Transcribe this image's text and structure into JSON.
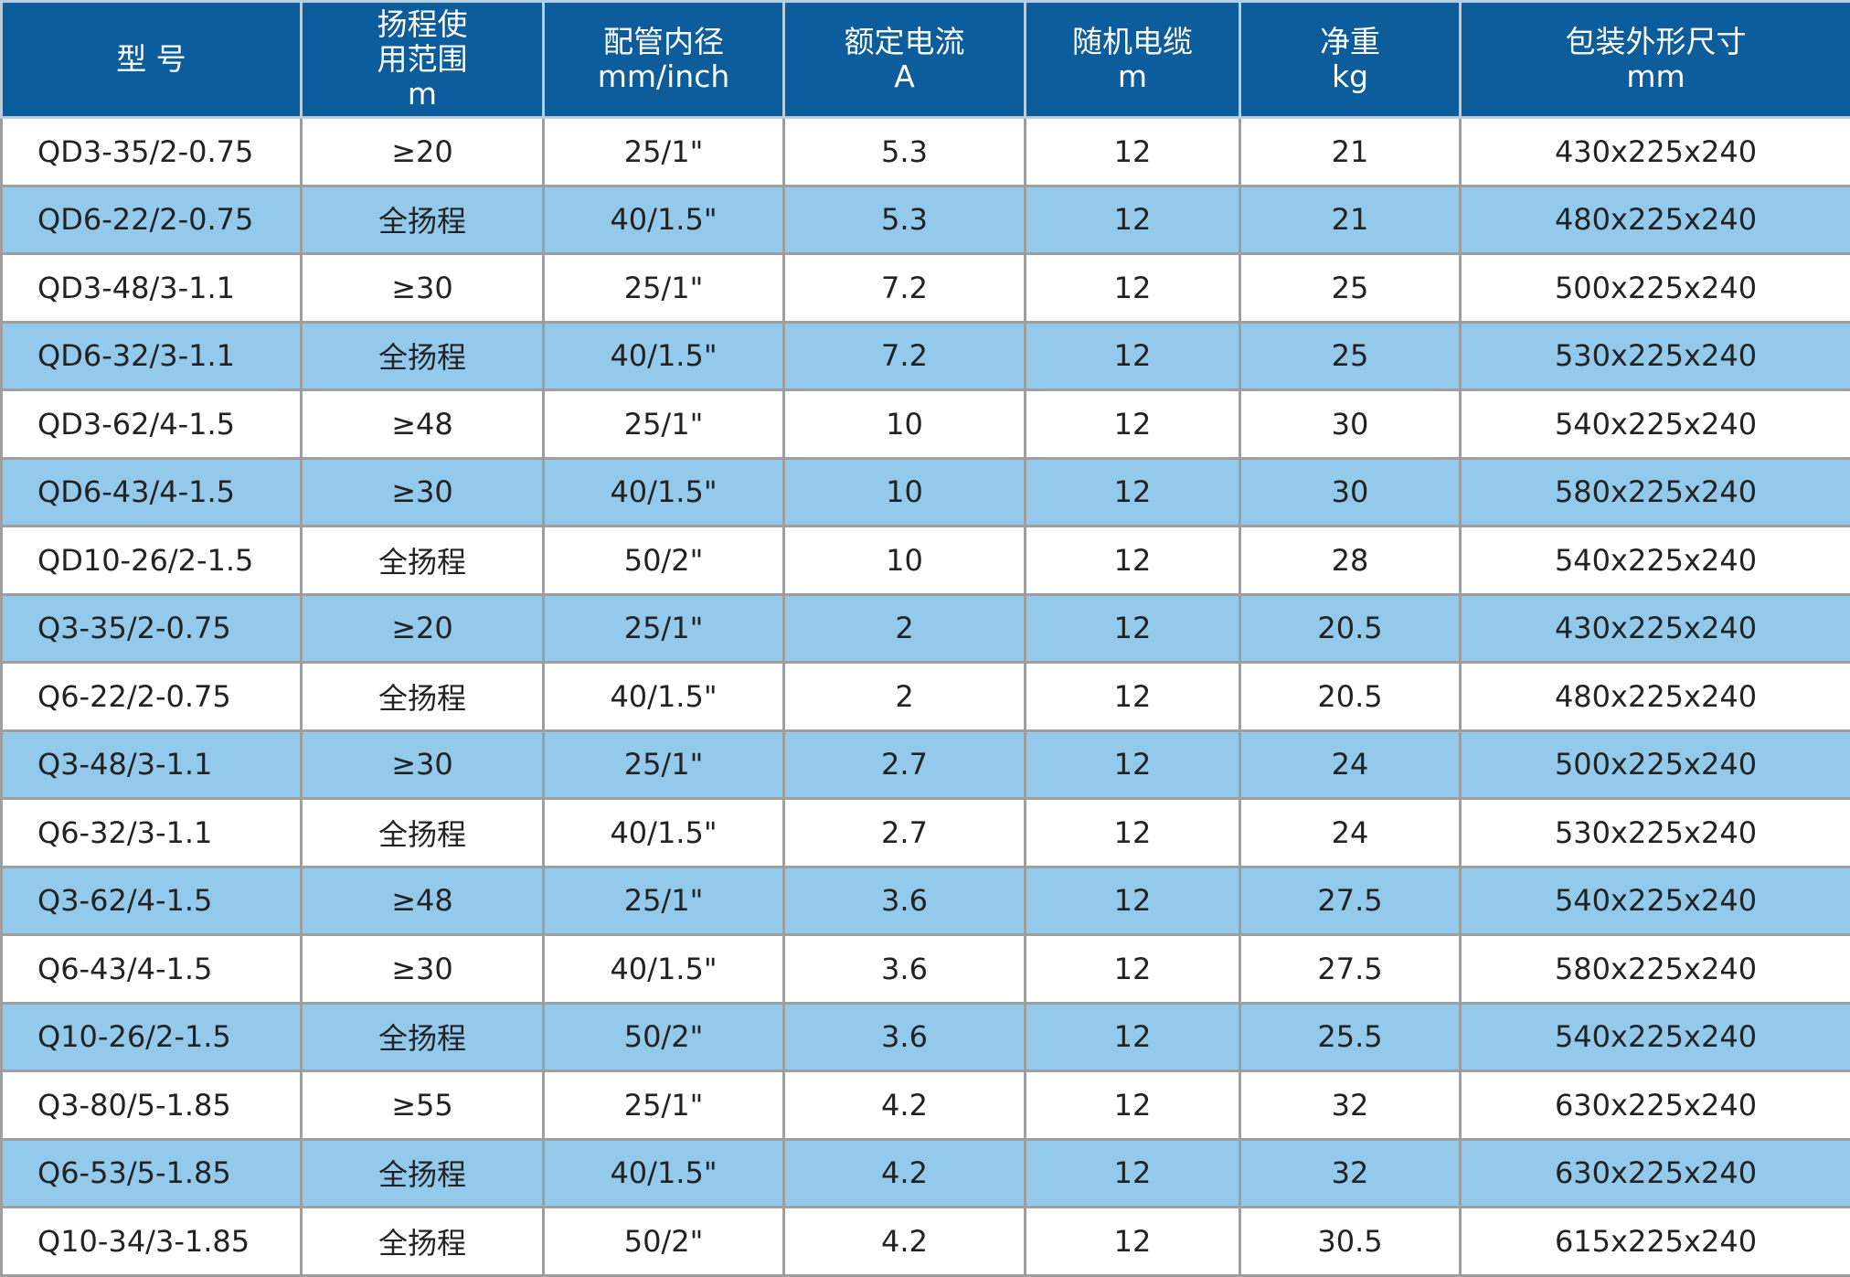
{
  "table": {
    "headers": [
      [
        "型 号"
      ],
      [
        "扬程使",
        "用范围",
        "m"
      ],
      [
        "配管内径",
        "mm/inch"
      ],
      [
        "额定电流",
        "A"
      ],
      [
        "随机电缆",
        "m"
      ],
      [
        "净重",
        "kg"
      ],
      [
        "包装外形尺寸",
        "mm"
      ]
    ],
    "rows": [
      [
        "QD3-35/2-0.75",
        "≥20",
        "25/1\"",
        "5.3",
        "12",
        "21",
        "430x225x240"
      ],
      [
        "QD6-22/2-0.75",
        "全扬程",
        "40/1.5\"",
        "5.3",
        "12",
        "21",
        "480x225x240"
      ],
      [
        "QD3-48/3-1.1",
        "≥30",
        "25/1\"",
        "7.2",
        "12",
        "25",
        "500x225x240"
      ],
      [
        "QD6-32/3-1.1",
        "全扬程",
        "40/1.5\"",
        "7.2",
        "12",
        "25",
        "530x225x240"
      ],
      [
        "QD3-62/4-1.5",
        "≥48",
        "25/1\"",
        "10",
        "12",
        "30",
        "540x225x240"
      ],
      [
        "QD6-43/4-1.5",
        "≥30",
        "40/1.5\"",
        "10",
        "12",
        "30",
        "580x225x240"
      ],
      [
        "QD10-26/2-1.5",
        "全扬程",
        "50/2\"",
        "10",
        "12",
        "28",
        "540x225x240"
      ],
      [
        "Q3-35/2-0.75",
        "≥20",
        "25/1\"",
        "2",
        "12",
        "20.5",
        "430x225x240"
      ],
      [
        "Q6-22/2-0.75",
        "全扬程",
        "40/1.5\"",
        "2",
        "12",
        "20.5",
        "480x225x240"
      ],
      [
        "Q3-48/3-1.1",
        "≥30",
        "25/1\"",
        "2.7",
        "12",
        "24",
        "500x225x240"
      ],
      [
        "Q6-32/3-1.1",
        "全扬程",
        "40/1.5\"",
        "2.7",
        "12",
        "24",
        "530x225x240"
      ],
      [
        "Q3-62/4-1.5",
        "≥48",
        "25/1\"",
        "3.6",
        "12",
        "27.5",
        "540x225x240"
      ],
      [
        "Q6-43/4-1.5",
        "≥30",
        "40/1.5\"",
        "3.6",
        "12",
        "27.5",
        "580x225x240"
      ],
      [
        "Q10-26/2-1.5",
        "全扬程",
        "50/2\"",
        "3.6",
        "12",
        "25.5",
        "540x225x240"
      ],
      [
        "Q3-80/5-1.85",
        "≥55",
        "25/1\"",
        "4.2",
        "12",
        "32",
        "630x225x240"
      ],
      [
        "Q6-53/5-1.85",
        "全扬程",
        "40/1.5\"",
        "4.2",
        "12",
        "32",
        "630x225x240"
      ],
      [
        "Q10-34/3-1.85",
        "全扬程",
        "50/2\"",
        "4.2",
        "12",
        "30.5",
        "615x225x240"
      ]
    ]
  },
  "colors": {
    "header_bg": "#0d5c9b",
    "header_text": "#ffffff",
    "row_even_bg": "#93c9ea",
    "row_odd_bg": "#ffffff",
    "cell_text": "#222222"
  }
}
